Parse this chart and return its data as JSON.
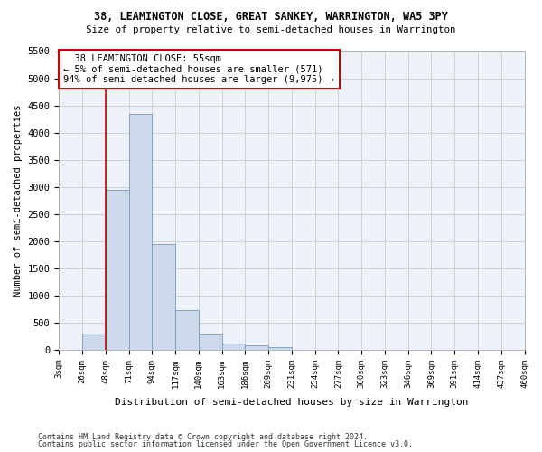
{
  "title1": "38, LEAMINGTON CLOSE, GREAT SANKEY, WARRINGTON, WA5 3PY",
  "title2": "Size of property relative to semi-detached houses in Warrington",
  "xlabel": "Distribution of semi-detached houses by size in Warrington",
  "ylabel": "Number of semi-detached properties",
  "footnote1": "Contains HM Land Registry data © Crown copyright and database right 2024.",
  "footnote2": "Contains public sector information licensed under the Open Government Licence v3.0.",
  "bin_labels": [
    "3sqm",
    "26sqm",
    "48sqm",
    "71sqm",
    "94sqm",
    "117sqm",
    "140sqm",
    "163sqm",
    "186sqm",
    "209sqm",
    "231sqm",
    "254sqm",
    "277sqm",
    "300sqm",
    "323sqm",
    "346sqm",
    "369sqm",
    "391sqm",
    "414sqm",
    "437sqm",
    "460sqm"
  ],
  "bar_values": [
    0,
    300,
    2950,
    4350,
    1950,
    730,
    280,
    120,
    90,
    55,
    0,
    0,
    0,
    0,
    0,
    0,
    0,
    0,
    0,
    0
  ],
  "bar_color": "#cddaeb",
  "bar_edge_color": "#7799bb",
  "red_line_x": 2.0,
  "annotation_title": "38 LEAMINGTON CLOSE: 55sqm",
  "annotation_line1": "← 5% of semi-detached houses are smaller (571)",
  "annotation_line2": "94% of semi-detached houses are larger (9,975) →",
  "annotation_box_color": "#ffffff",
  "annotation_border_color": "#cc0000",
  "ylim": [
    0,
    5500
  ],
  "yticks": [
    0,
    500,
    1000,
    1500,
    2000,
    2500,
    3000,
    3500,
    4000,
    4500,
    5000,
    5500
  ],
  "grid_color": "#cccccc",
  "background_color": "#edf2f9"
}
